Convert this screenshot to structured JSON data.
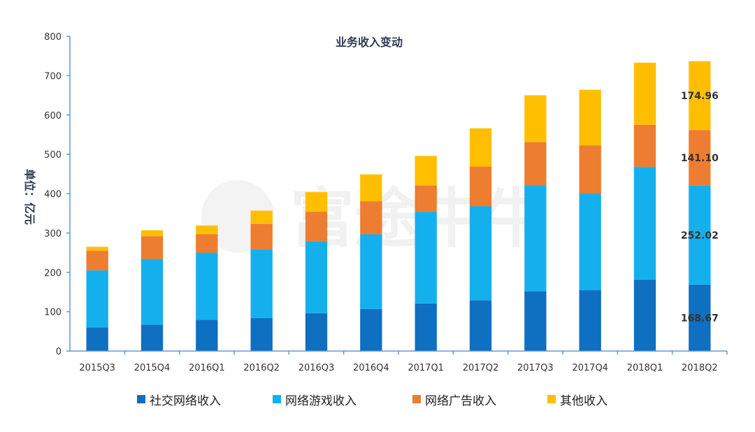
{
  "chart_data": {
    "type": "bar",
    "stacked": true,
    "title": "业务收入变动",
    "ylabel": "单位：亿元",
    "xlabel": "",
    "ylim": [
      0,
      800
    ],
    "yticks": [
      0,
      100,
      200,
      300,
      400,
      500,
      600,
      700,
      800
    ],
    "categories": [
      "2015Q3",
      "2015Q4",
      "2016Q1",
      "2016Q2",
      "2016Q3",
      "2016Q4",
      "2017Q1",
      "2017Q2",
      "2017Q3",
      "2017Q4",
      "2018Q1",
      "2018Q2"
    ],
    "series": [
      {
        "name": "社交网络收入",
        "color": "#0f6fc0",
        "values": [
          60,
          67,
          79,
          84,
          96,
          107,
          121,
          129,
          152,
          155,
          181,
          168.67
        ]
      },
      {
        "name": "网络游戏收入",
        "color": "#14b0ee",
        "values": [
          145,
          167,
          171,
          174,
          183,
          190,
          233,
          239,
          270,
          245,
          287,
          252.02
        ]
      },
      {
        "name": "网络广告收入",
        "color": "#ed7d31",
        "values": [
          50,
          58,
          47,
          65,
          75,
          84,
          67,
          101,
          109,
          123,
          107,
          141.1
        ]
      },
      {
        "name": "其他收入",
        "color": "#ffbf00",
        "values": [
          10,
          15,
          22,
          34,
          50,
          68,
          75,
          97,
          119,
          141,
          158,
          174.96
        ]
      }
    ],
    "data_labels": {
      "category": "2018Q2",
      "labels": [
        "168.67",
        "252.02",
        "141.10",
        "174.96"
      ]
    },
    "grid": false,
    "legend_position": "bottom"
  },
  "watermark": {
    "text": "富途牛牛"
  }
}
